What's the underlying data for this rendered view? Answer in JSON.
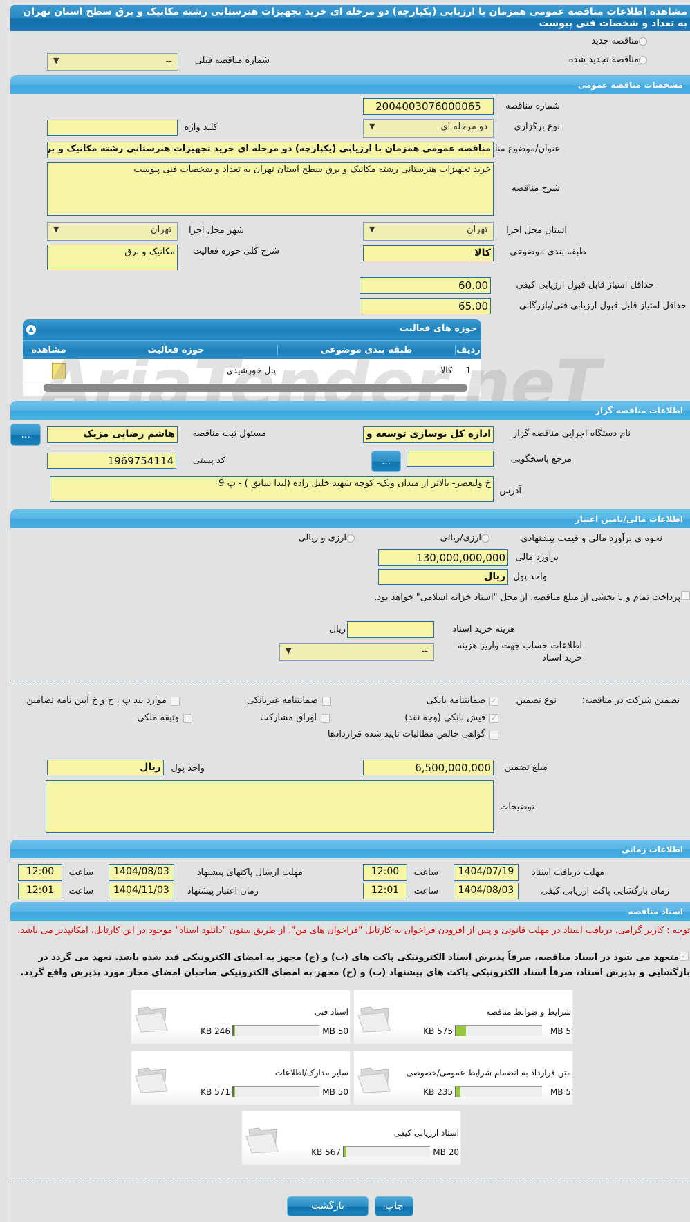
{
  "title": "مشاهده اطلاعات مناقصه عمومی همزمان با ارزیابی (یکپارچه) دو مرحله ای خرید تجهیزات هنرستانی رشته مکانیک و برق سطح استان تهران به تعداد و شخصات فنی پیوست",
  "tender_mode": {
    "new_label": "مناقصه جدید",
    "renewed_label": "مناقصه تجدید شده",
    "prev_number_label": "شماره مناقصه قبلی",
    "prev_number_value": "--"
  },
  "general": {
    "header": "مشخصات مناقصه عمومی",
    "number_label": "شماره مناقصه",
    "number": "2004003076000065",
    "type_label": "نوع برگزاری",
    "type": "دو مرحله ای",
    "keyword_label": "کلید واژه",
    "keyword": "",
    "subject_label": "عنوان/موضوع مناقصه",
    "subject": "مناقصه عمومی همزمان با ارزیابی (یکپارچه) دو مرحله ای خرید تجهیزات هنرستانی رشته مکانیک و برق",
    "desc_label": "شرح مناقصه",
    "desc": "خرید تجهیزات هنرستانی رشته مکانیک و برق سطح استان تهران به تعداد و شخصات فنی پیوست",
    "province_label": "استان محل اجرا",
    "province": "تهران",
    "city_label": "شهر محل اجرا",
    "city": "تهران",
    "category_label": "طبقه بندی موضوعی",
    "category": "کالا",
    "activity_label": "شرح کلی حوزه فعالیت",
    "activity": "مکانیک و برق",
    "min_quality_label": "حداقل امتیاز قابل قبول ارزیابی کیفی",
    "min_quality": "60.00",
    "min_tech_label": "حداقل امتیاز قابل قبول ارزیابی فنی/بازرگانی",
    "min_tech": "65.00"
  },
  "activities": {
    "header": "حوزه های فعالیت",
    "columns": [
      "ردیف",
      "طبقه بندی موضوعی",
      "حوزه فعالیت",
      "مشاهده"
    ],
    "rows": [
      {
        "row": "1",
        "category": "کالا",
        "field": "پنل خورشیدی"
      }
    ]
  },
  "watermark": "AriaTender.neT",
  "organizer": {
    "header": "اطلاعات مناقصه گزار",
    "org_label": "نام دستگاه اجرایی مناقصه گزار",
    "org": "اداره کل نوسازی  توسعه و",
    "resp_label": "مسئول ثبت مناقصه",
    "resp": "هاشم رضایی مزیک",
    "ref_label": "مرجع پاسخگویی",
    "ref": "",
    "postal_label": "کد پستی",
    "postal": "1969754114",
    "address_label": "آدرس",
    "address": "خ ولیعصر- بالاتر از میدان ونک- کوچه شهید خلیل زاده (لیدا سابق ) - پ 9",
    "more_button": "..."
  },
  "finance": {
    "header": "اطلاعات مالی/تامین اعتبار",
    "method_label": "نحوه ی برآورد مالی و قیمت پیشنهادی",
    "opt1": "ارزی/ریالی",
    "opt2": "ارزی و ریالی",
    "estimate_label": "برآورد مالی",
    "estimate": "130,000,000,000",
    "unit_label": "واحد پول",
    "unit": "ریال",
    "treasury_text": "پرداخت تمام و یا بخشی از مبلغ مناقصه، از محل \"اسناد خزانه اسلامی\" خواهد بود.",
    "doc_fee_label": "هزینه خرید اسناد",
    "doc_fee": "",
    "doc_fee_unit": "ریال",
    "account_label": "اطلاعات حساب جهت واریز هزینه خرید اسناد",
    "account": "--"
  },
  "guarantee": {
    "label": "تضمین شرکت در مناقصه:",
    "type_label": "نوع تضمین",
    "options": [
      {
        "label": "ضمانتنامه بانکی",
        "checked": true
      },
      {
        "label": "ضمانتنامه غیربانکی",
        "checked": false
      },
      {
        "label": "موارد بند پ ، ح و خ آیین نامه تضامین",
        "checked": false
      },
      {
        "label": "فیش بانکی (وجه نقد)",
        "checked": true
      },
      {
        "label": "اوراق مشارکت",
        "checked": false
      },
      {
        "label": "وثیقه ملکی",
        "checked": false
      },
      {
        "label": "گواهی خالص مطالبات تایید شده قراردادها",
        "checked": false
      }
    ],
    "amount_label": "مبلغ تضمین",
    "amount": "6,500,000,000",
    "unit_label": "واحد پول",
    "unit": "ریال",
    "notes_label": "توضیحات",
    "notes": ""
  },
  "timing": {
    "header": "اطلاعات زمانی",
    "hour_label": "ساعت",
    "doc_deadline_label": "مهلت دریافت اسناد",
    "doc_deadline": "1404/07/19",
    "doc_deadline_time": "12:00",
    "submit_label": "مهلت ارسال پاکتهای پیشنهاد",
    "submit": "1404/08/03",
    "submit_time": "12:00",
    "open_label": "زمان بازگشایی پاکت ارزیابی کیفی",
    "open": "1404/08/03",
    "open_time": "12:01",
    "validity_label": "زمان اعتبار پیشنهاد",
    "validity": "1404/11/03",
    "validity_time": "12:01"
  },
  "documents": {
    "header": "اسناد مناقصه",
    "notice": "توجه : کاربر گرامی، دریافت اسناد در مهلت قانونی و پس از افزودن فراخوان به کارتابل \"فراخوان های من\"، از طریق ستون \"دانلود اسناد\" موجود در این کارتابل، امکانپذیر می باشد.",
    "commitment": "متعهد می شود در اسناد مناقصه، صرفاً پذیرش اسناد الکترونیکی پاکت های (ب) و (ج) مجهز به امضای الکترونیکی قید شده باشد. تعهد می گردد در بازگشایی و پذیرش اسناد، صرفاً اسناد الکترونیکی پاکت های پیشنهاد (ب) و (ج) مجهز به امضای الکترونیکی صاحبان امضای مجاز مورد پذیرش واقع گردد.",
    "files": [
      {
        "name": "شرایط و ضوابط مناقصه",
        "used": "575 KB",
        "max": "5 MB",
        "fill": 0.112
      },
      {
        "name": "اسناد فنی",
        "used": "246 KB",
        "max": "50 MB",
        "fill": 0.005
      },
      {
        "name": "متن قرارداد به انضمام شرایط عمومی/خصوصی",
        "used": "235 KB",
        "max": "5 MB",
        "fill": 0.046
      },
      {
        "name": "سایر مدارک/اطلاعات",
        "used": "571 KB",
        "max": "50 MB",
        "fill": 0.011
      },
      {
        "name": "اسناد ارزیابی کیفی",
        "used": "567 KB",
        "max": "20 MB",
        "fill": 0.028
      }
    ]
  },
  "actions": {
    "print": "چاپ",
    "back": "بازگشت"
  }
}
